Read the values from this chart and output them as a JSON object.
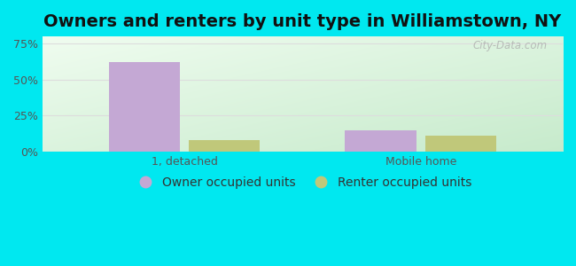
{
  "title": "Owners and renters by unit type in Williamstown, NY",
  "categories": [
    "1, detached",
    "Mobile home"
  ],
  "owner_values": [
    62,
    15
  ],
  "renter_values": [
    8,
    11
  ],
  "owner_color": "#c4a8d4",
  "renter_color": "#c0c87a",
  "owner_label": "Owner occupied units",
  "renter_label": "Renter occupied units",
  "yticks": [
    0,
    25,
    50,
    75
  ],
  "ylim": [
    0,
    80
  ],
  "bar_width": 0.3,
  "outer_bg": "#00e8f0",
  "title_fontsize": 14,
  "tick_fontsize": 9,
  "legend_fontsize": 10,
  "watermark": "City-Data.com",
  "bg_left": "#d4edd4",
  "bg_right": "#e8f5f0",
  "bg_top": "#f0fbf8",
  "bg_bottom": "#c8e8c8"
}
